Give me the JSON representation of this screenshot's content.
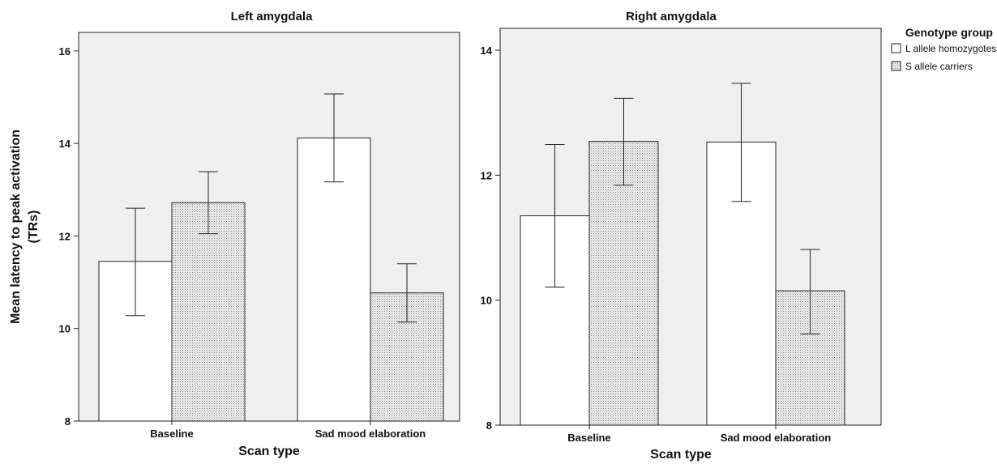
{
  "chart_data": [
    {
      "type": "bar",
      "title": "Left amygdala",
      "xlabel": "Scan type",
      "ylabel": "Mean latency to peak activation (TRs)",
      "ylabel_lines": [
        "Mean latency to peak activation",
        "(TRs)"
      ],
      "ylim": [
        8,
        16.4
      ],
      "yticks": [
        8,
        10,
        12,
        14,
        16
      ],
      "categories": [
        "Baseline",
        "Sad mood elaboration"
      ],
      "series": [
        {
          "name": "L allele homozygotes",
          "values": [
            11.45,
            14.12
          ],
          "err_low": [
            10.28,
            13.17
          ],
          "err_high": [
            12.6,
            15.07
          ]
        },
        {
          "name": "S allele carriers",
          "values": [
            12.72,
            10.77
          ],
          "err_low": [
            12.05,
            10.14
          ],
          "err_high": [
            13.39,
            11.4
          ]
        }
      ]
    },
    {
      "type": "bar",
      "title": "Right amygdala",
      "xlabel": "Scan type",
      "ylim": [
        8,
        14.35
      ],
      "yticks": [
        8,
        10,
        12,
        14
      ],
      "categories": [
        "Baseline",
        "Sad mood elaboration"
      ],
      "series": [
        {
          "name": "L allele homozygotes",
          "values": [
            11.35,
            12.53
          ],
          "err_low": [
            10.21,
            11.58
          ],
          "err_high": [
            12.49,
            13.47
          ]
        },
        {
          "name": "S allele carriers",
          "values": [
            12.54,
            10.15
          ],
          "err_low": [
            11.84,
            9.46
          ],
          "err_high": [
            13.23,
            10.81
          ]
        }
      ]
    }
  ],
  "legend": {
    "title": "Genotype group",
    "items": [
      "L allele homozygotes",
      "S allele carriers"
    ]
  }
}
